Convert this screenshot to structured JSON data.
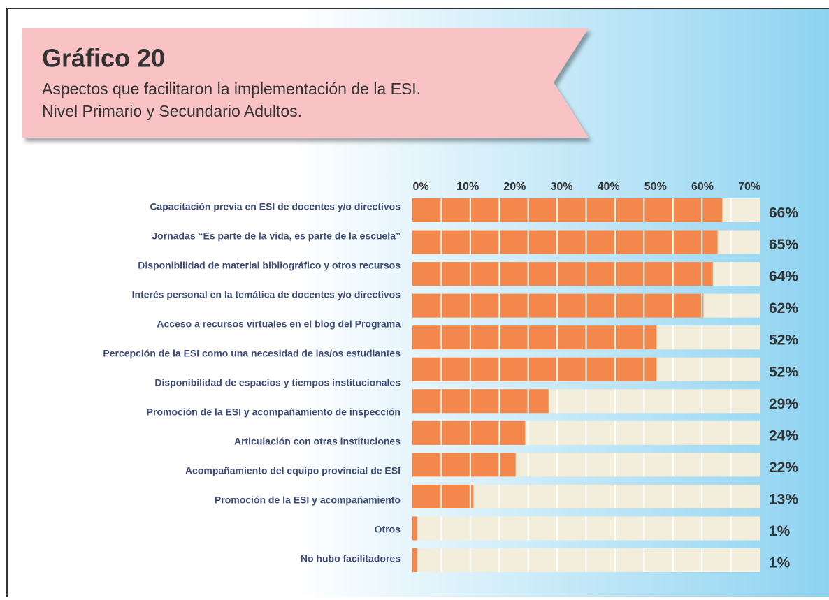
{
  "chart_data": {
    "type": "bar",
    "title": "Gráfico 20",
    "subtitle": [
      "Aspectos que facilitaron la implementación de la ESI.",
      "Nivel Primario y Secundario Adultos."
    ],
    "categories": [
      "Capacitación previa en ESI de docentes y/o directivos",
      "Jornadas “Es parte de la vida, es parte de la escuela”",
      "Disponibilidad de material bibliográfico y otros recursos",
      "Interés personal en la temática de docentes y/o directivos",
      "Acceso a recursos virtuales en el blog del Programa",
      "Percepción de la ESI como una necesidad de las/os estudiantes",
      "Disponibilidad de espacios y tiempos institucionales",
      "Promoción de la ESI y acompañamiento de inspección",
      "Articulación con otras instituciones",
      "Acompañamiento del equipo provincial de ESI",
      "Promoción de la ESI y acompañamiento",
      "Otros",
      "No hubo facilitadores"
    ],
    "values": [
      66,
      65,
      64,
      62,
      52,
      52,
      null,
      29,
      24,
      22,
      13,
      1,
      1
    ],
    "value_labels": [
      "66%",
      "65%",
      "64%",
      "62%",
      "52%",
      "52%",
      null,
      "29%",
      "24%",
      "22%",
      "13%",
      "1%",
      "1%"
    ],
    "color": "#f4874b",
    "track_color": "#f3eedc",
    "xlim": [
      0,
      74
    ],
    "xticks": [
      {
        "value": 0,
        "label": "0%"
      },
      {
        "value": 10,
        "label": "10%"
      },
      {
        "value": 20,
        "label": "20%"
      },
      {
        "value": 30,
        "label": "30%"
      },
      {
        "value": 40,
        "label": "40%"
      },
      {
        "value": 50,
        "label": "50%"
      },
      {
        "value": 60,
        "label": "60%"
      },
      {
        "value": 70,
        "label": "70%"
      }
    ]
  }
}
